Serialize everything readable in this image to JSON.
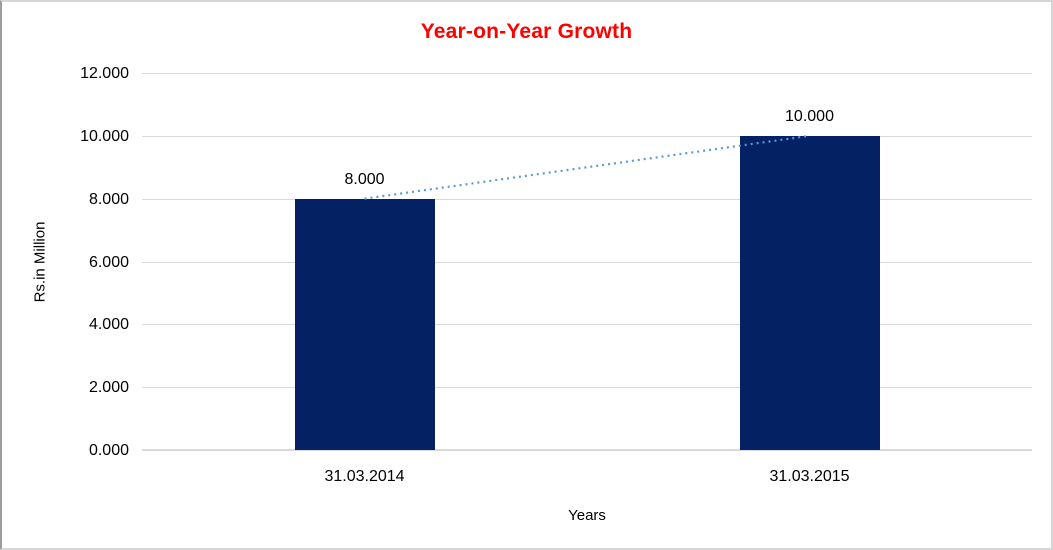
{
  "chart_data": {
    "type": "bar",
    "title": "Year-on-Year Growth",
    "categories": [
      "31.03.2014",
      "31.03.2015"
    ],
    "values": [
      8,
      10
    ],
    "data_labels": [
      "8.000",
      "10.000"
    ],
    "xlabel": "Years",
    "ylabel": "Rs.in Million",
    "ylim": [
      0,
      12
    ],
    "ytick_step": 2,
    "ytick_labels": [
      "0.000",
      "2.000",
      "4.000",
      "6.000",
      "8.000",
      "10.000",
      "12.000"
    ],
    "grid": true,
    "legend": "none",
    "trendline": {
      "style": "dotted",
      "color": "#5b9bd5",
      "from_value": 8,
      "to_value": 10
    },
    "colors": {
      "bar": "#032163",
      "title": "#ff0000",
      "gridline": "#d9d9d9",
      "text": "#000000"
    }
  }
}
